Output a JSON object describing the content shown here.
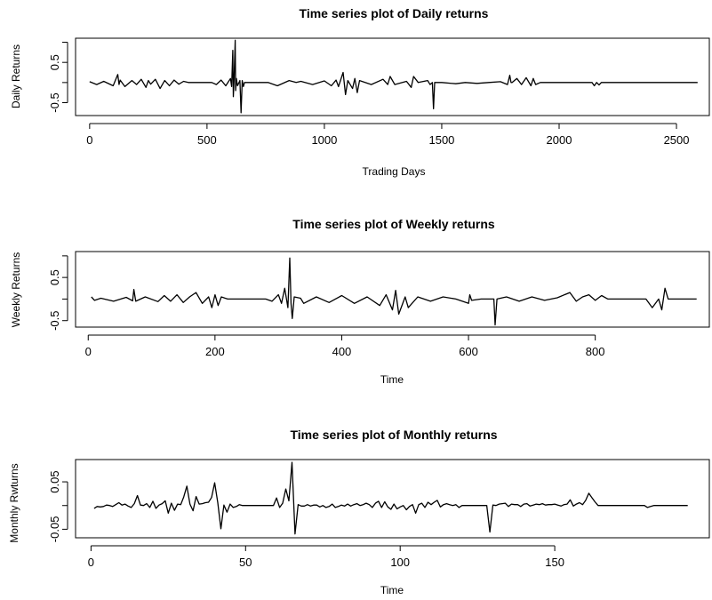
{
  "chart_data": [
    {
      "type": "line",
      "title": "Time series plot of Daily returns",
      "xlabel": "Trading Days",
      "ylabel": "Daily Returns",
      "xlim": [
        -60,
        2640
      ],
      "ylim": [
        -0.82,
        1.1
      ],
      "xticks": [
        0,
        500,
        1000,
        1500,
        2000,
        2500
      ],
      "xtick_labels": [
        "0",
        "500",
        "1000",
        "1500",
        "2000",
        "2500"
      ],
      "yticks": [
        -0.5,
        0.5
      ],
      "ytick_labels": [
        "-0.5",
        "0.5"
      ],
      "extra_yticks": [
        0,
        1.0
      ],
      "line_color": "#000000",
      "grid": false,
      "series": [
        {
          "x": [
            0,
            30,
            60,
            100,
            120,
            125,
            130,
            150,
            180,
            200,
            220,
            240,
            250,
            260,
            280,
            300,
            320,
            340,
            360,
            380,
            400,
            420,
            440,
            460,
            480,
            500,
            520,
            540,
            560,
            580,
            600,
            605,
            610,
            612,
            615,
            620,
            622,
            625,
            630,
            640,
            645,
            650,
            655,
            660,
            680,
            700,
            720,
            760,
            800,
            850,
            880,
            900,
            950,
            1000,
            1030,
            1050,
            1060,
            1080,
            1090,
            1100,
            1120,
            1130,
            1140,
            1150,
            1200,
            1250,
            1270,
            1280,
            1300,
            1350,
            1370,
            1380,
            1400,
            1440,
            1450,
            1460,
            1465,
            1470,
            1500,
            1560,
            1600,
            1650,
            1700,
            1750,
            1780,
            1790,
            1795,
            1800,
            1820,
            1840,
            1860,
            1880,
            1890,
            1900,
            1920,
            1950,
            2000,
            2050,
            2100,
            2140,
            2150,
            2160,
            2170,
            2180,
            2200,
            2250,
            2300,
            2400,
            2500,
            2590
          ],
          "y": [
            0.02,
            -0.05,
            0.03,
            -0.08,
            0.2,
            -0.05,
            0.06,
            -0.1,
            0.05,
            -0.05,
            0.08,
            -0.12,
            0.05,
            -0.04,
            0.08,
            -0.15,
            0.05,
            -0.08,
            0.06,
            -0.04,
            0.03,
            0.0,
            0.0,
            0.0,
            0.0,
            0.0,
            0.0,
            -0.05,
            0.06,
            -0.08,
            0.1,
            -0.1,
            0.8,
            -0.35,
            0.05,
            1.05,
            -0.2,
            0.1,
            -0.08,
            0.05,
            -0.75,
            0.05,
            -0.1,
            0.0,
            0.0,
            0.0,
            0.0,
            0.0,
            -0.08,
            0.05,
            0.0,
            0.03,
            -0.05,
            0.04,
            -0.08,
            0.06,
            -0.1,
            0.25,
            -0.3,
            0.05,
            -0.15,
            0.1,
            -0.25,
            0.05,
            -0.05,
            0.08,
            -0.05,
            0.15,
            -0.05,
            0.03,
            -0.12,
            0.15,
            0.0,
            0.05,
            -0.05,
            0.0,
            -0.65,
            0.0,
            0.0,
            -0.03,
            0.0,
            -0.02,
            0.0,
            0.02,
            -0.05,
            0.18,
            0.0,
            0.0,
            0.1,
            -0.05,
            0.12,
            -0.08,
            0.1,
            -0.05,
            0.0,
            0.0,
            0.0,
            0.0,
            0.0,
            0.0,
            -0.08,
            0.0,
            -0.06,
            0.0,
            0.0,
            0.0,
            0.0,
            0.0,
            0.0,
            0.0
          ]
        }
      ]
    },
    {
      "type": "line",
      "title": "Time series plot of Weekly returns",
      "xlabel": "Time",
      "ylabel": "Weekly Returns",
      "xlim": [
        -20,
        980
      ],
      "ylim": [
        -0.65,
        1.1
      ],
      "xticks": [
        0,
        200,
        400,
        600,
        800
      ],
      "xtick_labels": [
        "0",
        "200",
        "400",
        "600",
        "800"
      ],
      "yticks": [
        -0.5,
        0.5
      ],
      "ytick_labels": [
        "-0.5",
        "0.5"
      ],
      "extra_yticks": [
        0,
        1.0
      ],
      "line_color": "#000000",
      "grid": false,
      "series": [
        {
          "x": [
            5,
            10,
            20,
            40,
            60,
            70,
            72,
            75,
            90,
            110,
            120,
            130,
            140,
            150,
            160,
            170,
            180,
            190,
            195,
            200,
            205,
            210,
            220,
            230,
            250,
            280,
            290,
            300,
            305,
            310,
            315,
            318,
            320,
            322,
            325,
            335,
            340,
            360,
            380,
            400,
            420,
            440,
            460,
            470,
            480,
            485,
            490,
            500,
            505,
            520,
            540,
            560,
            580,
            600,
            602,
            605,
            620,
            640,
            642,
            645,
            660,
            680,
            700,
            720,
            740,
            760,
            770,
            780,
            790,
            800,
            810,
            820,
            850,
            880,
            890,
            900,
            905,
            910,
            915,
            960
          ],
          "y": [
            0.05,
            -0.03,
            0.02,
            -0.05,
            0.04,
            -0.04,
            0.22,
            -0.05,
            0.05,
            -0.06,
            0.08,
            -0.05,
            0.1,
            -0.08,
            0.05,
            0.15,
            -0.1,
            0.05,
            -0.2,
            0.1,
            -0.15,
            0.05,
            0.0,
            0.0,
            0.0,
            0.0,
            -0.05,
            0.1,
            -0.1,
            0.25,
            -0.2,
            0.95,
            -0.1,
            -0.45,
            0.05,
            0.02,
            -0.1,
            0.05,
            -0.08,
            0.08,
            -0.1,
            0.05,
            -0.15,
            0.1,
            -0.25,
            0.2,
            -0.35,
            0.05,
            -0.2,
            0.05,
            -0.05,
            0.05,
            0.0,
            -0.1,
            0.1,
            -0.03,
            0.0,
            0.0,
            -0.6,
            0.0,
            0.05,
            -0.05,
            0.05,
            -0.03,
            0.03,
            0.15,
            -0.05,
            0.05,
            0.1,
            -0.03,
            0.08,
            0.0,
            0.0,
            0.0,
            -0.2,
            0.0,
            -0.25,
            0.25,
            0.0,
            0.0
          ]
        }
      ]
    },
    {
      "type": "line",
      "title": "Time series plot of Monthly returns",
      "xlabel": "Time",
      "ylabel": "Monthly Rwturns",
      "xlim": [
        -5,
        200
      ],
      "ylim": [
        -0.068,
        0.097
      ],
      "xticks": [
        0,
        50,
        100,
        150
      ],
      "xtick_labels": [
        "0",
        "50",
        "100",
        "150"
      ],
      "yticks": [
        -0.05,
        0.05
      ],
      "ytick_labels": [
        "-0.05",
        "0.05"
      ],
      "extra_yticks": [
        0.0
      ],
      "line_color": "#000000",
      "grid": false,
      "series": [
        {
          "x": [
            1,
            2,
            3,
            4,
            5,
            6,
            7,
            8,
            9,
            10,
            11,
            12,
            13,
            14,
            15,
            16,
            17,
            18,
            19,
            20,
            21,
            22,
            23,
            24,
            25,
            26,
            27,
            28,
            29,
            30,
            31,
            32,
            33,
            34,
            35,
            36,
            37,
            38,
            39,
            40,
            41,
            42,
            43,
            44,
            45,
            46,
            47,
            48,
            49,
            50,
            51,
            52,
            53,
            54,
            55,
            56,
            57,
            58,
            59,
            60,
            61,
            62,
            63,
            64,
            65,
            66,
            67,
            68,
            69,
            70,
            71,
            72,
            73,
            74,
            75,
            76,
            77,
            78,
            79,
            80,
            81,
            82,
            83,
            84,
            85,
            86,
            87,
            88,
            89,
            90,
            91,
            92,
            93,
            94,
            95,
            96,
            97,
            98,
            99,
            100,
            101,
            102,
            103,
            104,
            105,
            106,
            107,
            108,
            109,
            110,
            111,
            112,
            113,
            114,
            115,
            116,
            117,
            118,
            119,
            120,
            121,
            122,
            123,
            124,
            125,
            126,
            127,
            128,
            129,
            130,
            131,
            132,
            133,
            134,
            135,
            136,
            137,
            138,
            139,
            140,
            141,
            142,
            143,
            144,
            145,
            146,
            147,
            148,
            149,
            150,
            151,
            152,
            153,
            154,
            155,
            156,
            157,
            158,
            159,
            160,
            161,
            162,
            163,
            164,
            165,
            166,
            167,
            168,
            169,
            170,
            171,
            172,
            173,
            174,
            175,
            176,
            177,
            178,
            179,
            180,
            181,
            182,
            183,
            184,
            185,
            186,
            187,
            188,
            189,
            190,
            191,
            192,
            193
          ],
          "y": [
            -0.006,
            -0.002,
            -0.003,
            -0.002,
            0.001,
            0.0,
            -0.002,
            0.002,
            0.006,
            0.001,
            0.003,
            -0.001,
            -0.004,
            0.004,
            0.021,
            0.001,
            0.0,
            0.004,
            -0.004,
            0.009,
            -0.006,
            0.001,
            0.004,
            0.01,
            -0.016,
            0.005,
            -0.01,
            0.003,
            0.002,
            0.018,
            0.041,
            0.003,
            -0.011,
            0.019,
            0.003,
            0.004,
            0.006,
            0.007,
            0.017,
            0.048,
            0.006,
            -0.049,
            0.001,
            -0.014,
            0.003,
            -0.004,
            -0.002,
            0.002,
            0.0,
            0.0,
            0.0,
            0.0,
            0.0,
            0.0,
            0.0,
            0.0,
            0.0,
            0.0,
            0.0,
            0.016,
            -0.004,
            0.005,
            0.035,
            0.01,
            0.091,
            -0.06,
            0.002,
            -0.001,
            -0.001,
            0.002,
            -0.001,
            0.001,
            0.001,
            -0.003,
            0.0,
            -0.004,
            -0.002,
            0.003,
            -0.004,
            -0.002,
            0.001,
            -0.001,
            0.003,
            -0.001,
            0.002,
            0.004,
            0.0,
            0.002,
            0.005,
            0.002,
            -0.004,
            0.005,
            0.009,
            -0.004,
            0.008,
            -0.003,
            -0.008,
            0.003,
            -0.007,
            -0.003,
            0.0,
            -0.009,
            -0.002,
            0.002,
            -0.016,
            0.002,
            0.005,
            -0.004,
            0.007,
            0.002,
            0.007,
            0.011,
            -0.003,
            0.002,
            0.004,
            0.002,
            0.0,
            0.002,
            -0.004,
            0.0,
            0.0,
            0.0,
            0.0,
            0.0,
            0.0,
            0.0,
            0.0,
            0.0,
            -0.056,
            0.001,
            0.0,
            0.003,
            0.004,
            0.005,
            -0.002,
            0.003,
            0.002,
            0.002,
            -0.002,
            0.003,
            0.004,
            -0.001,
            0.001,
            0.003,
            0.002,
            0.004,
            0.001,
            0.002,
            0.002,
            0.003,
            0.001,
            -0.001,
            0.002,
            0.003,
            0.012,
            -0.001,
            0.003,
            0.006,
            0.002,
            0.011,
            0.026,
            0.017,
            0.008,
            0.0,
            0.0,
            0.0,
            0.0,
            0.0,
            0.0,
            0.0,
            0.0,
            0.0,
            0.0,
            0.0,
            0.0,
            0.0,
            0.0,
            0.0,
            0.0,
            -0.004,
            -0.002,
            0.0,
            0.0,
            0.0,
            0.0,
            0.0,
            0.0,
            0.0,
            0.0,
            0.0,
            0.0,
            0.0,
            0.0
          ]
        }
      ]
    }
  ]
}
